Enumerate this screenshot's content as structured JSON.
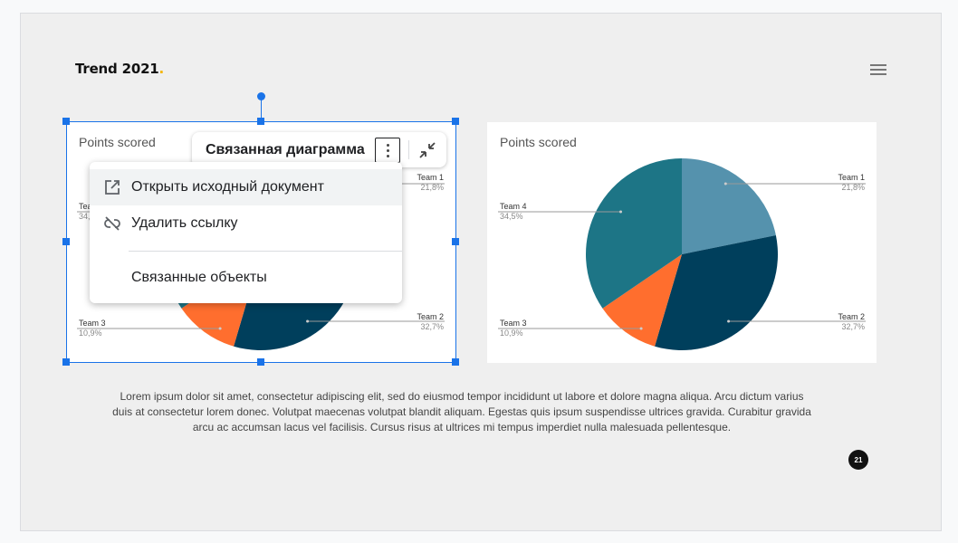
{
  "slide": {
    "brand": "Trend 2021",
    "brand_dot": ".",
    "body_text": "Lorem ipsum dolor sit amet, consectetur adipiscing elit, sed do eiusmod tempor incididunt ut labore et dolore magna aliqua. Arcu dictum varius duis at consectetur lorem donec. Volutpat maecenas volutpat blandit aliquam. Egestas quis ipsum suspendisse ultrices gravida. Curabitur gravida arcu ac accumsan lacus vel facilisis. Cursus risus at ultrices mi tempus imperdiet nulla malesuada pellentesque.",
    "page_number": "21"
  },
  "linked_chart_toolbar": {
    "title": "Связанная диаграмма",
    "more_icon": "more-vert-icon",
    "collapse_icon": "collapse-icon"
  },
  "menu": {
    "open_source": "Открыть исходный документ",
    "unlink": "Удалить ссылку",
    "linked_objects": "Связанные объекты",
    "open_source_icon": "open-in-new-icon",
    "unlink_icon": "link-off-icon"
  },
  "chart_data": [
    {
      "type": "pie",
      "title": "Points scored",
      "series": [
        {
          "name": "Team 1",
          "value": 21.8,
          "label": "21,8%",
          "color": "#5592ad"
        },
        {
          "name": "Team 2",
          "value": 32.7,
          "label": "32,7%",
          "color": "#003f5c"
        },
        {
          "name": "Team 3",
          "value": 10.9,
          "label": "10,9%",
          "color": "#ff6e2e"
        },
        {
          "name": "Team 4",
          "value": 34.5,
          "label": "34,5%",
          "color": "#1d7586"
        }
      ],
      "legend": "callout-labels"
    },
    {
      "type": "pie",
      "title": "Points scored",
      "series": [
        {
          "name": "Team 1",
          "value": 21.8,
          "label": "21,8%",
          "color": "#5592ad"
        },
        {
          "name": "Team 2",
          "value": 32.7,
          "label": "32,7%",
          "color": "#003f5c"
        },
        {
          "name": "Team 3",
          "value": 10.9,
          "label": "10,9%",
          "color": "#ff6e2e"
        },
        {
          "name": "Team 4",
          "value": 34.5,
          "label": "34,5%",
          "color": "#1d7586"
        }
      ],
      "legend": "callout-labels"
    }
  ]
}
